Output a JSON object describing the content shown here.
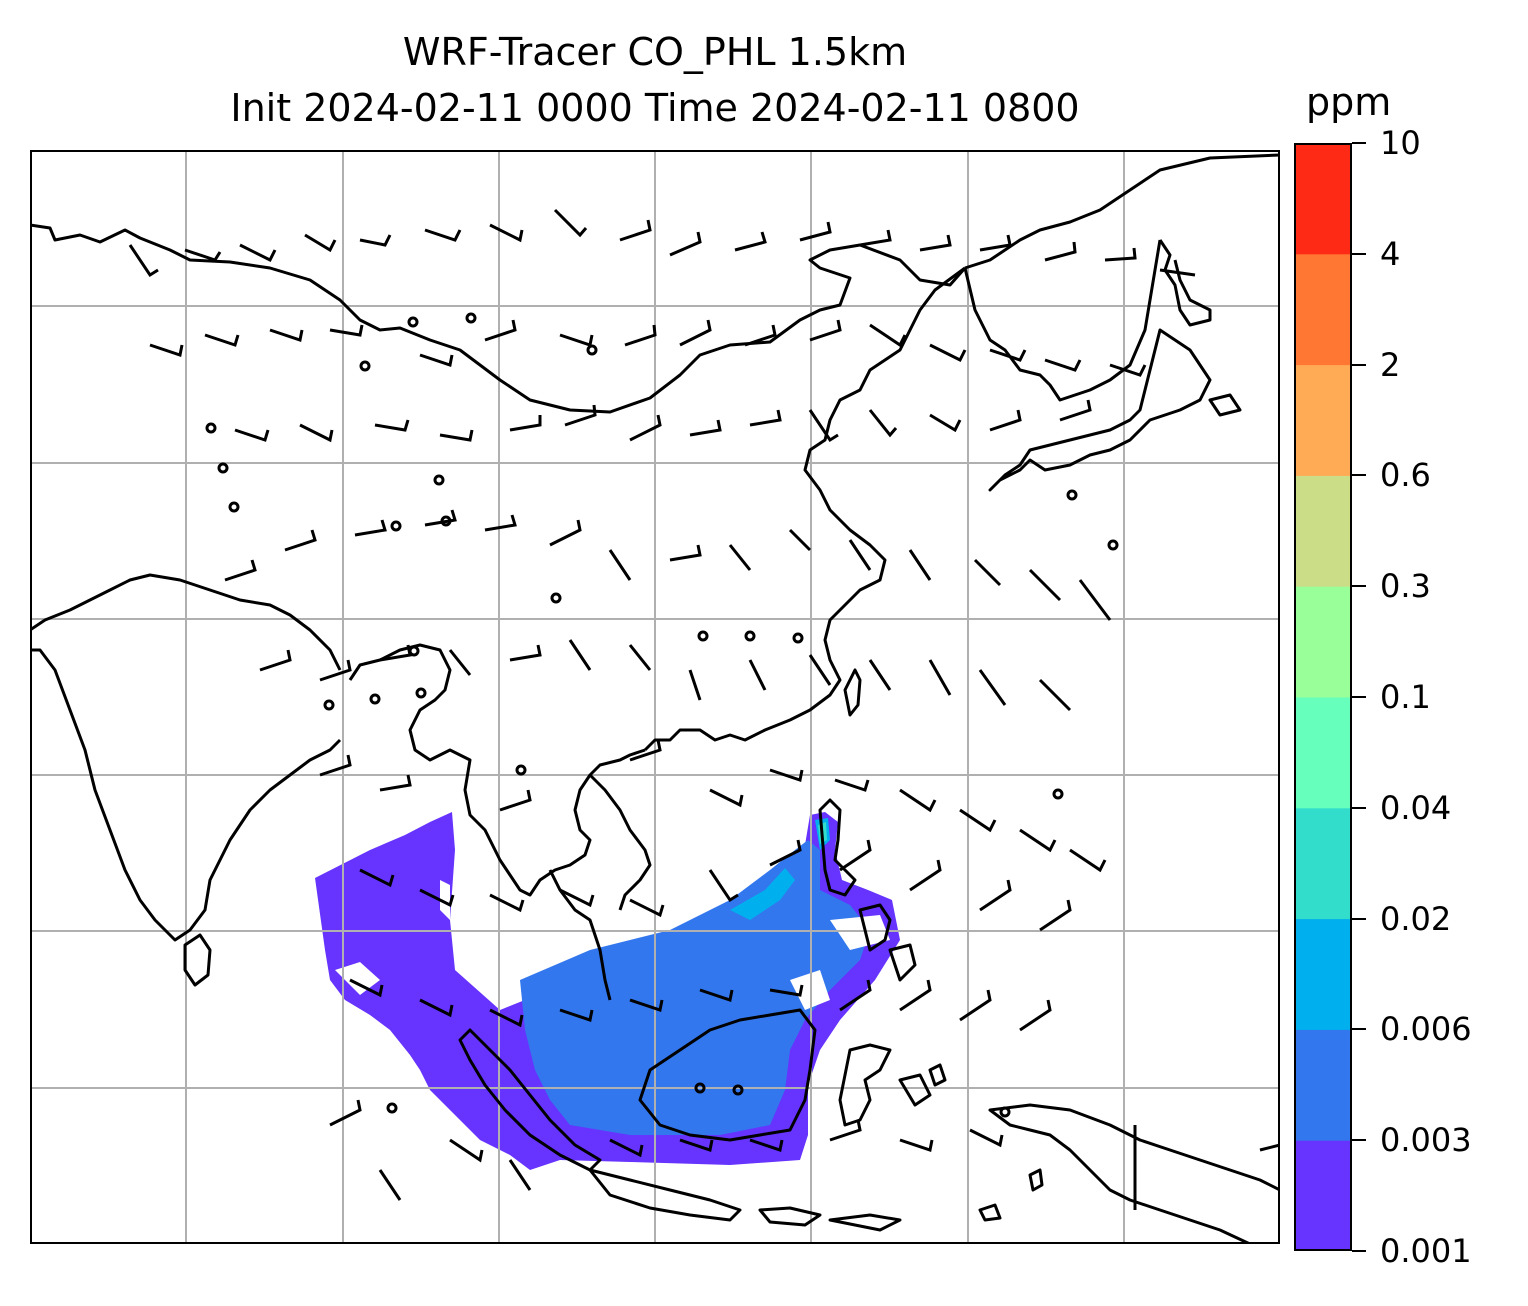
{
  "title_line1": "WRF-Tracer CO_PHL 1.5km",
  "title_line2": "Init 2024-02-11 0000 Time 2024-02-11 0800",
  "colorbar": {
    "unit": "ppm",
    "levels": [
      "0.001",
      "0.003",
      "0.006",
      "0.02",
      "0.04",
      "0.1",
      "0.3",
      "0.6",
      "2",
      "4",
      "10"
    ],
    "colors": [
      "#6633ff",
      "#3377ee",
      "#00b0ee",
      "#33ddcc",
      "#66ffbb",
      "#99ff99",
      "#ccdd88",
      "#ffaa55",
      "#ff7733",
      "#ff2a15"
    ]
  },
  "map": {
    "gridlines": true,
    "coastline_color": "#000000",
    "grid_color": "#b0b0b0",
    "tracer_fill_colors": {
      "low": "#6633ff",
      "mid": "#3377ee",
      "high": "#00b0ee",
      "peak": "#33ddcc"
    }
  }
}
